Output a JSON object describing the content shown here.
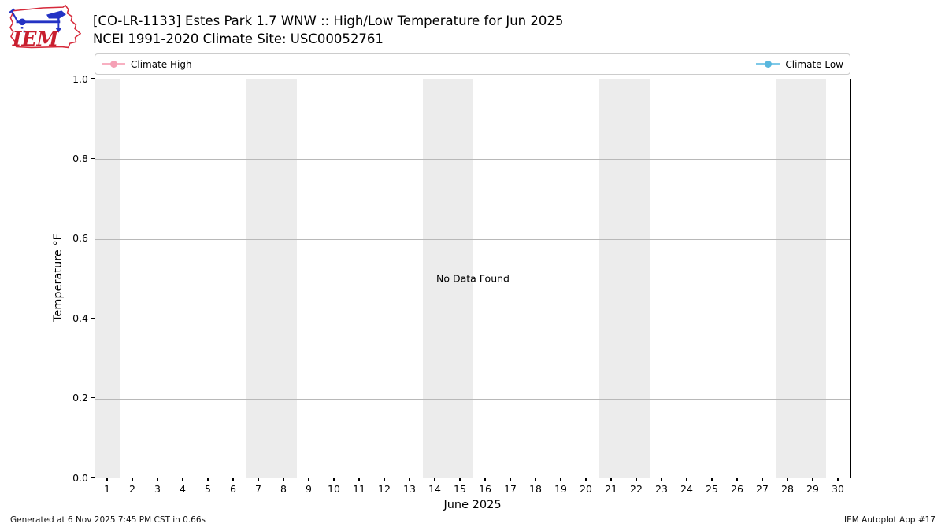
{
  "header": {
    "logo_text": "IEM",
    "title_line1": "[CO-LR-1133] Estes Park 1.7 WNW :: High/Low Temperature for Jun 2025",
    "title_line2": "NCEI 1991-2020 Climate Site: USC00052761"
  },
  "legend": {
    "items": [
      {
        "label": "Climate High",
        "line_color": "#f8b0c1",
        "dot_color": "#f5a0b5"
      },
      {
        "label": "Climate Low",
        "line_color": "#7fc9e8",
        "dot_color": "#58b7de"
      }
    ]
  },
  "chart_data": {
    "type": "line",
    "title": "[CO-LR-1133] Estes Park 1.7 WNW :: High/Low Temperature for Jun 2025",
    "subtitle": "NCEI 1991-2020 Climate Site: USC00052761",
    "xlabel": "June 2025",
    "ylabel": "Temperature °F",
    "annotation": "No Data Found",
    "xlim": [
      0.5,
      30.5
    ],
    "ylim": [
      0.0,
      1.0
    ],
    "x_ticks": [
      1,
      2,
      3,
      4,
      5,
      6,
      7,
      8,
      9,
      10,
      11,
      12,
      13,
      14,
      15,
      16,
      17,
      18,
      19,
      20,
      21,
      22,
      23,
      24,
      25,
      26,
      27,
      28,
      29,
      30
    ],
    "y_ticks": [
      {
        "value": 1.0,
        "label": "1.0"
      },
      {
        "value": 0.8,
        "label": "0.8"
      },
      {
        "value": 0.6,
        "label": "0.6"
      },
      {
        "value": 0.4,
        "label": "0.4"
      },
      {
        "value": 0.2,
        "label": "0.2"
      },
      {
        "value": 0.0,
        "label": "0.0"
      }
    ],
    "grid": "horizontal",
    "grid_values": [
      0.2,
      0.4,
      0.6,
      0.8
    ],
    "weekend_bands": [
      [
        0.5,
        1.5
      ],
      [
        6.5,
        8.5
      ],
      [
        13.5,
        15.5
      ],
      [
        20.5,
        22.5
      ],
      [
        27.5,
        29.5
      ]
    ],
    "series": [
      {
        "name": "Climate High",
        "color": "#f8b0c1",
        "x": [],
        "values": []
      },
      {
        "name": "Climate Low",
        "color": "#7fc9e8",
        "x": [],
        "values": []
      }
    ]
  },
  "footer": {
    "left": "Generated at 6 Nov 2025 7:45 PM CST in 0.66s",
    "right": "IEM Autoplot App #17"
  }
}
